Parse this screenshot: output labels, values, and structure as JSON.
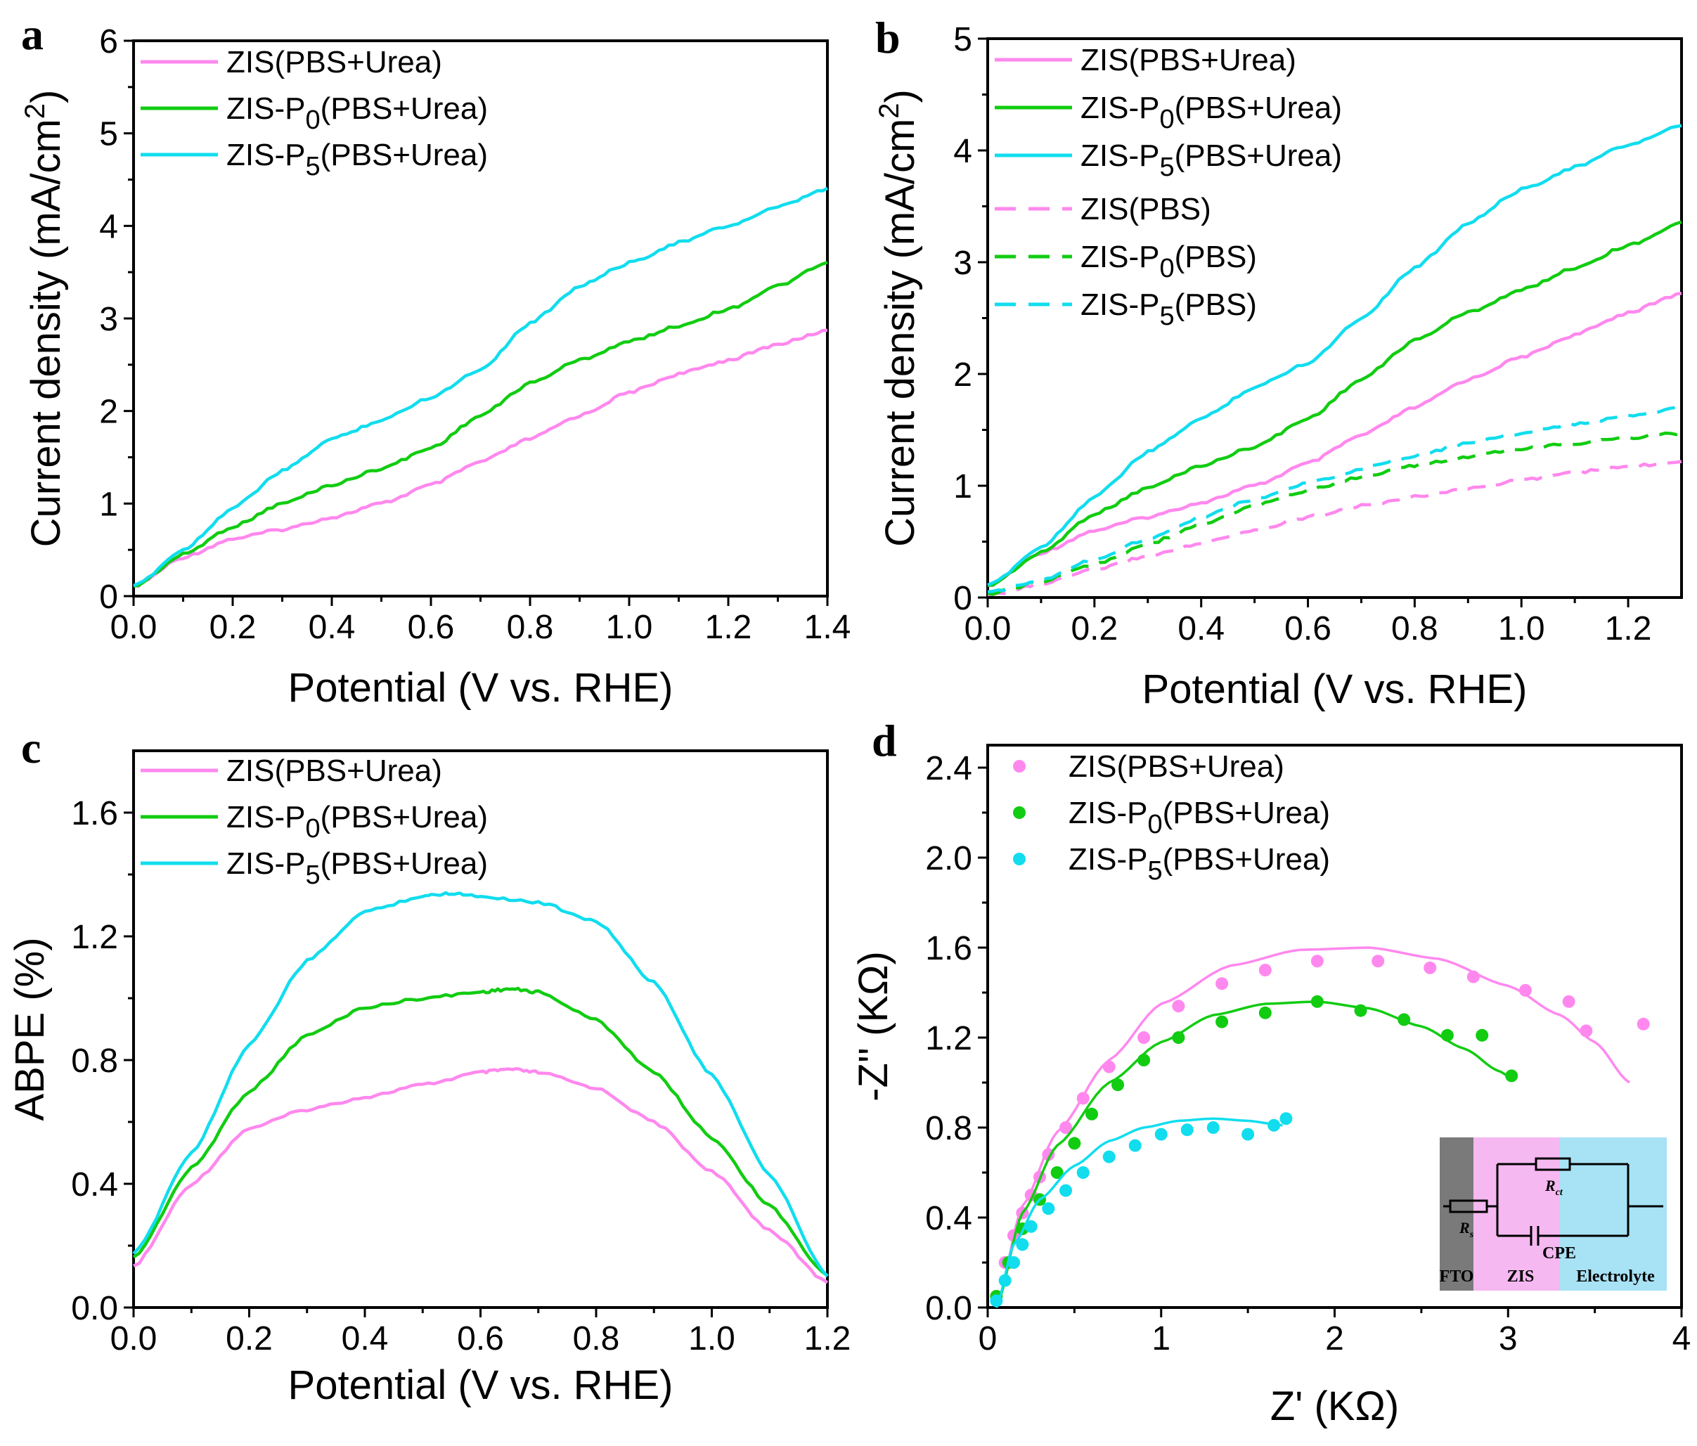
{
  "chart_data": [
    {
      "panel": "a",
      "type": "line",
      "xlabel": "Potential (V vs. RHE)",
      "ylabel": "Current density (mA/cm²)",
      "xlim": [
        0,
        1.4
      ],
      "ylim": [
        0,
        6
      ],
      "xticks": [
        "0.0",
        "0.2",
        "0.4",
        "0.6",
        "0.8",
        "1.0",
        "1.2",
        "1.4"
      ],
      "yticks": [
        "0",
        "1",
        "2",
        "3",
        "4",
        "5",
        "6"
      ],
      "legend": [
        {
          "label": "ZIS(PBS+Urea)",
          "color": "#ff88ee",
          "style": "solid"
        },
        {
          "label": "ZIS-P0(PBS+Urea)",
          "color": "#11cc11",
          "style": "solid"
        },
        {
          "label": "ZIS-P5(PBS+Urea)",
          "color": "#11ddee",
          "style": "solid"
        }
      ],
      "series": [
        {
          "name": "ZIS(PBS+Urea)",
          "x": [
            0,
            0.1,
            0.2,
            0.3,
            0.4,
            0.5,
            0.6,
            0.7,
            0.8,
            0.9,
            1.0,
            1.1,
            1.2,
            1.3,
            1.4
          ],
          "values": [
            0.1,
            0.42,
            0.62,
            0.72,
            0.85,
            1.0,
            1.2,
            1.45,
            1.7,
            1.95,
            2.2,
            2.4,
            2.55,
            2.72,
            2.87
          ]
        },
        {
          "name": "ZIS-P0(PBS+Urea)",
          "x": [
            0,
            0.1,
            0.2,
            0.3,
            0.4,
            0.5,
            0.6,
            0.7,
            0.8,
            0.9,
            1.0,
            1.1,
            1.2,
            1.3,
            1.4
          ],
          "values": [
            0.1,
            0.45,
            0.75,
            1.0,
            1.2,
            1.38,
            1.6,
            1.95,
            2.3,
            2.55,
            2.75,
            2.92,
            3.1,
            3.35,
            3.6
          ]
        },
        {
          "name": "ZIS-P5(PBS+Urea)",
          "x": [
            0,
            0.1,
            0.2,
            0.3,
            0.4,
            0.5,
            0.6,
            0.7,
            0.8,
            0.9,
            1.0,
            1.1,
            1.2,
            1.3,
            1.4
          ],
          "values": [
            0.1,
            0.5,
            0.95,
            1.35,
            1.7,
            1.9,
            2.15,
            2.45,
            2.95,
            3.35,
            3.6,
            3.82,
            4.0,
            4.2,
            4.4
          ]
        }
      ]
    },
    {
      "panel": "b",
      "type": "line",
      "xlabel": "Potential (V vs. RHE)",
      "ylabel": "Current density (mA/cm²)",
      "xlim": [
        0,
        1.3
      ],
      "ylim": [
        0,
        5
      ],
      "xticks": [
        "0.0",
        "0.2",
        "0.4",
        "0.6",
        "0.8",
        "1.0",
        "1.2"
      ],
      "yticks": [
        "0",
        "1",
        "2",
        "3",
        "4",
        "5"
      ],
      "legend": [
        {
          "label": "ZIS(PBS+Urea)",
          "color": "#ff88ee",
          "style": "solid"
        },
        {
          "label": "ZIS-P0(PBS+Urea)",
          "color": "#11cc11",
          "style": "solid"
        },
        {
          "label": "ZIS-P5(PBS+Urea)",
          "color": "#11ddee",
          "style": "solid"
        },
        {
          "label": "ZIS(PBS)",
          "color": "#ff88ee",
          "style": "dashed"
        },
        {
          "label": "ZIS-P0(PBS)",
          "color": "#11cc11",
          "style": "dashed"
        },
        {
          "label": "ZIS-P5(PBS)",
          "color": "#11ddee",
          "style": "dashed"
        }
      ],
      "series": [
        {
          "name": "ZIS(PBS+Urea)",
          "x": [
            0,
            0.1,
            0.2,
            0.3,
            0.4,
            0.5,
            0.6,
            0.7,
            0.8,
            0.9,
            1.0,
            1.1,
            1.2,
            1.3
          ],
          "values": [
            0.1,
            0.4,
            0.6,
            0.72,
            0.85,
            1.0,
            1.2,
            1.45,
            1.7,
            1.95,
            2.15,
            2.35,
            2.55,
            2.72
          ]
        },
        {
          "name": "ZIS-P0(PBS+Urea)",
          "x": [
            0,
            0.1,
            0.2,
            0.3,
            0.4,
            0.5,
            0.6,
            0.7,
            0.8,
            0.9,
            1.0,
            1.1,
            1.2,
            1.3
          ],
          "values": [
            0.1,
            0.4,
            0.75,
            0.98,
            1.18,
            1.35,
            1.6,
            1.95,
            2.3,
            2.55,
            2.75,
            2.95,
            3.15,
            3.35
          ]
        },
        {
          "name": "ZIS-P5(PBS+Urea)",
          "x": [
            0,
            0.1,
            0.2,
            0.3,
            0.4,
            0.5,
            0.6,
            0.7,
            0.8,
            0.9,
            1.0,
            1.1,
            1.2,
            1.3
          ],
          "values": [
            0.1,
            0.45,
            0.9,
            1.3,
            1.6,
            1.88,
            2.1,
            2.5,
            2.95,
            3.35,
            3.65,
            3.85,
            4.05,
            4.22
          ]
        },
        {
          "name": "ZIS(PBS)",
          "dashed": true,
          "x": [
            0,
            0.1,
            0.2,
            0.3,
            0.4,
            0.5,
            0.6,
            0.7,
            0.8,
            0.9,
            1.0,
            1.1,
            1.2,
            1.3
          ],
          "values": [
            0.02,
            0.12,
            0.25,
            0.37,
            0.48,
            0.6,
            0.72,
            0.82,
            0.9,
            0.98,
            1.05,
            1.12,
            1.17,
            1.22
          ]
        },
        {
          "name": "ZIS-P0(PBS)",
          "dashed": true,
          "x": [
            0,
            0.1,
            0.2,
            0.3,
            0.4,
            0.5,
            0.6,
            0.7,
            0.8,
            0.9,
            1.0,
            1.1,
            1.2,
            1.3
          ],
          "values": [
            0.03,
            0.14,
            0.3,
            0.48,
            0.65,
            0.82,
            0.96,
            1.08,
            1.18,
            1.26,
            1.33,
            1.38,
            1.43,
            1.47
          ]
        },
        {
          "name": "ZIS-P5(PBS)",
          "dashed": true,
          "x": [
            0,
            0.1,
            0.2,
            0.3,
            0.4,
            0.5,
            0.6,
            0.7,
            0.8,
            0.9,
            1.0,
            1.1,
            1.2,
            1.3
          ],
          "values": [
            0.04,
            0.16,
            0.34,
            0.53,
            0.72,
            0.88,
            1.02,
            1.15,
            1.27,
            1.38,
            1.47,
            1.55,
            1.62,
            1.7
          ]
        }
      ]
    },
    {
      "panel": "c",
      "type": "line",
      "xlabel": "Potential (V vs. RHE)",
      "ylabel": "ABPE (%)",
      "xlim": [
        0,
        1.2
      ],
      "ylim": [
        0,
        1.8
      ],
      "xticks": [
        "0.0",
        "0.2",
        "0.4",
        "0.6",
        "0.8",
        "1.0",
        "1.2"
      ],
      "yticks": [
        "0.0",
        "0.4",
        "0.8",
        "1.2",
        "1.6"
      ],
      "legend": [
        {
          "label": "ZIS(PBS+Urea)",
          "color": "#ff88ee",
          "style": "solid"
        },
        {
          "label": "ZIS-P0(PBS+Urea)",
          "color": "#11cc11",
          "style": "solid"
        },
        {
          "label": "ZIS-P5(PBS+Urea)",
          "color": "#11ddee",
          "style": "solid"
        }
      ],
      "series": [
        {
          "name": "ZIS(PBS+Urea)",
          "x": [
            0,
            0.1,
            0.2,
            0.3,
            0.4,
            0.5,
            0.6,
            0.65,
            0.7,
            0.8,
            0.9,
            1.0,
            1.1,
            1.2
          ],
          "values": [
            0.13,
            0.4,
            0.58,
            0.64,
            0.68,
            0.72,
            0.76,
            0.77,
            0.76,
            0.71,
            0.6,
            0.44,
            0.25,
            0.08
          ]
        },
        {
          "name": "ZIS-P0(PBS+Urea)",
          "x": [
            0,
            0.1,
            0.2,
            0.3,
            0.4,
            0.5,
            0.6,
            0.65,
            0.7,
            0.8,
            0.9,
            1.0,
            1.1,
            1.2
          ],
          "values": [
            0.16,
            0.45,
            0.7,
            0.88,
            0.97,
            1.0,
            1.02,
            1.03,
            1.02,
            0.93,
            0.76,
            0.55,
            0.33,
            0.1
          ]
        },
        {
          "name": "ZIS-P5(PBS+Urea)",
          "x": [
            0,
            0.1,
            0.2,
            0.3,
            0.4,
            0.5,
            0.55,
            0.6,
            0.7,
            0.8,
            0.9,
            1.0,
            1.1,
            1.2
          ],
          "values": [
            0.17,
            0.5,
            0.85,
            1.12,
            1.28,
            1.33,
            1.34,
            1.33,
            1.31,
            1.25,
            1.05,
            0.75,
            0.43,
            0.1
          ]
        }
      ]
    },
    {
      "panel": "d",
      "type": "scatter",
      "xlabel": "Z' (KΩ)",
      "ylabel": "-Z'' (KΩ)",
      "xlim": [
        0,
        4
      ],
      "ylim": [
        0,
        2.5
      ],
      "xticks": [
        "0",
        "1",
        "2",
        "3",
        "4"
      ],
      "yticks": [
        "0.0",
        "0.4",
        "0.8",
        "1.2",
        "1.6",
        "2.0",
        "2.4"
      ],
      "legend": [
        {
          "label": "ZIS(PBS+Urea)",
          "color": "#ff88ee",
          "style": "dot"
        },
        {
          "label": "ZIS-P0(PBS+Urea)",
          "color": "#11cc11",
          "style": "dot"
        },
        {
          "label": "ZIS-P5(PBS+Urea)",
          "color": "#11ddee",
          "style": "dot"
        }
      ],
      "series": [
        {
          "name": "ZIS(PBS+Urea)",
          "x": [
            0.05,
            0.1,
            0.15,
            0.2,
            0.25,
            0.3,
            0.35,
            0.45,
            0.55,
            0.7,
            0.9,
            1.1,
            1.35,
            1.6,
            1.9,
            2.25,
            2.55,
            2.8,
            3.1,
            3.35,
            3.45,
            3.78
          ],
          "values": [
            0.05,
            0.2,
            0.32,
            0.42,
            0.5,
            0.58,
            0.68,
            0.8,
            0.93,
            1.07,
            1.2,
            1.34,
            1.44,
            1.5,
            1.54,
            1.54,
            1.51,
            1.47,
            1.41,
            1.36,
            1.23,
            1.26
          ],
          "fit_x": [
            0.05,
            0.2,
            0.4,
            0.7,
            1.0,
            1.4,
            1.8,
            2.2,
            2.6,
            3.0,
            3.3,
            3.5,
            3.7
          ],
          "fit_values": [
            0.0,
            0.45,
            0.78,
            1.1,
            1.35,
            1.52,
            1.59,
            1.6,
            1.55,
            1.43,
            1.3,
            1.18,
            1.0
          ]
        },
        {
          "name": "ZIS-P0(PBS+Urea)",
          "x": [
            0.05,
            0.12,
            0.2,
            0.3,
            0.4,
            0.5,
            0.6,
            0.75,
            0.9,
            1.1,
            1.35,
            1.6,
            1.9,
            2.15,
            2.4,
            2.65,
            2.85,
            3.02
          ],
          "values": [
            0.05,
            0.2,
            0.35,
            0.48,
            0.6,
            0.73,
            0.86,
            0.99,
            1.1,
            1.2,
            1.27,
            1.31,
            1.36,
            1.32,
            1.28,
            1.21,
            1.21,
            1.03
          ],
          "fit_x": [
            0.05,
            0.2,
            0.4,
            0.7,
            1.0,
            1.3,
            1.6,
            1.9,
            2.2,
            2.5,
            2.75,
            2.95,
            3.0
          ],
          "fit_values": [
            0.0,
            0.42,
            0.72,
            1.0,
            1.18,
            1.3,
            1.35,
            1.36,
            1.33,
            1.25,
            1.15,
            1.05,
            1.03
          ]
        },
        {
          "name": "ZIS-P5(PBS+Urea)",
          "x": [
            0.05,
            0.1,
            0.15,
            0.2,
            0.25,
            0.35,
            0.45,
            0.55,
            0.7,
            0.85,
            1.0,
            1.15,
            1.3,
            1.5,
            1.65,
            1.72
          ],
          "values": [
            0.03,
            0.12,
            0.2,
            0.28,
            0.36,
            0.44,
            0.52,
            0.6,
            0.67,
            0.72,
            0.77,
            0.79,
            0.8,
            0.77,
            0.81,
            0.84
          ],
          "fit_x": [
            0.05,
            0.15,
            0.3,
            0.5,
            0.7,
            0.9,
            1.1,
            1.3,
            1.5,
            1.7
          ],
          "fit_values": [
            0.0,
            0.28,
            0.48,
            0.63,
            0.74,
            0.8,
            0.83,
            0.84,
            0.83,
            0.81
          ]
        }
      ],
      "inset": {
        "labels": [
          "FTO",
          "ZIS",
          "Electrolyte",
          "CPE"
        ],
        "rs": "R",
        "rs_sub": "s",
        "rct": "R",
        "rct_sub": "ct",
        "colors": {
          "fto": "#7a7a7a",
          "zis": "#f5b8f0",
          "electrolyte": "#a8e2f5"
        }
      }
    }
  ],
  "panel_letters": [
    "a",
    "b",
    "c",
    "d"
  ]
}
